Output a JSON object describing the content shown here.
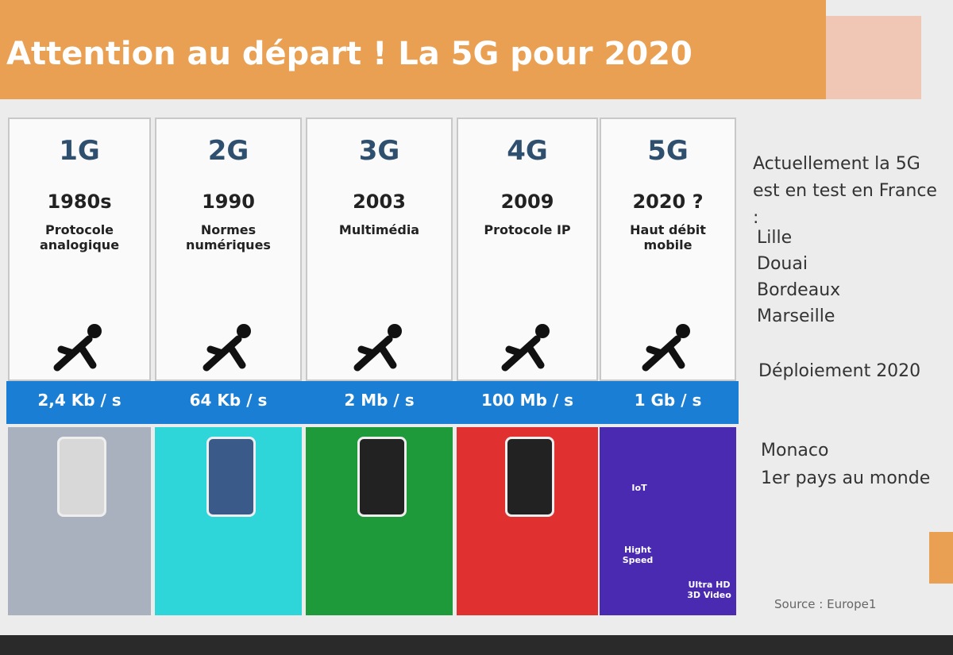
{
  "header": {
    "title": "Attention au départ ! La 5G pour 2020"
  },
  "generations": [
    {
      "name": "1G",
      "year": "1980s",
      "description": "Protocole analogique",
      "speed": "2,4 Kb / s"
    },
    {
      "name": "2G",
      "year": "1990",
      "description": "Normes numériques",
      "speed": "64 Kb / s"
    },
    {
      "name": "3G",
      "year": "2003",
      "description": "Multimédia",
      "speed": "2 Mb / s"
    },
    {
      "name": "4G",
      "year": "2009",
      "description": "Protocole IP",
      "speed": "100 Mb / s"
    },
    {
      "name": "5G",
      "year": "2020 ?",
      "description": "Haut débit mobile",
      "speed": "1 Gb / s"
    }
  ],
  "features_5g": [
    "IoT",
    "Hight Speed",
    "Ultra HD 3D Video"
  ],
  "side": {
    "intro": "Actuellement la 5G est en test en France :",
    "cities": [
      "Lille",
      "Douai",
      "Bordeaux",
      "Marseille"
    ],
    "deployment": "Déploiement 2020",
    "monaco": [
      "Monaco",
      "1er pays au monde"
    ],
    "source": "Source : Europe1"
  }
}
